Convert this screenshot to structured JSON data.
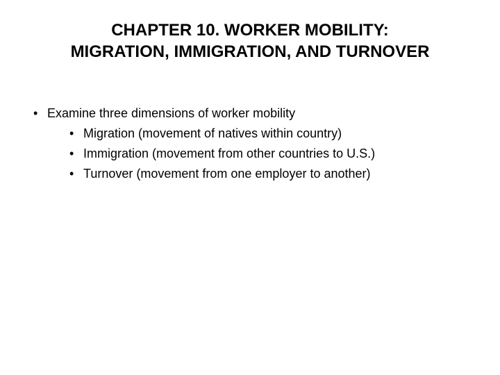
{
  "title": {
    "line1": "CHAPTER 10.  WORKER MOBILITY:",
    "line2": "MIGRATION, IMMIGRATION, AND TURNOVER",
    "fontsize": 24,
    "fontweight": "bold",
    "color": "#000000"
  },
  "bullets": {
    "level1_marker": "•",
    "level2_marker": "•",
    "fontsize": 18,
    "color": "#000000",
    "item1": "Examine three dimensions of worker mobility",
    "sub1": "Migration (movement of natives within country)",
    "sub2": "Immigration (movement from other countries to U.S.)",
    "sub3": "Turnover (movement from one employer to another)"
  },
  "background_color": "#ffffff"
}
